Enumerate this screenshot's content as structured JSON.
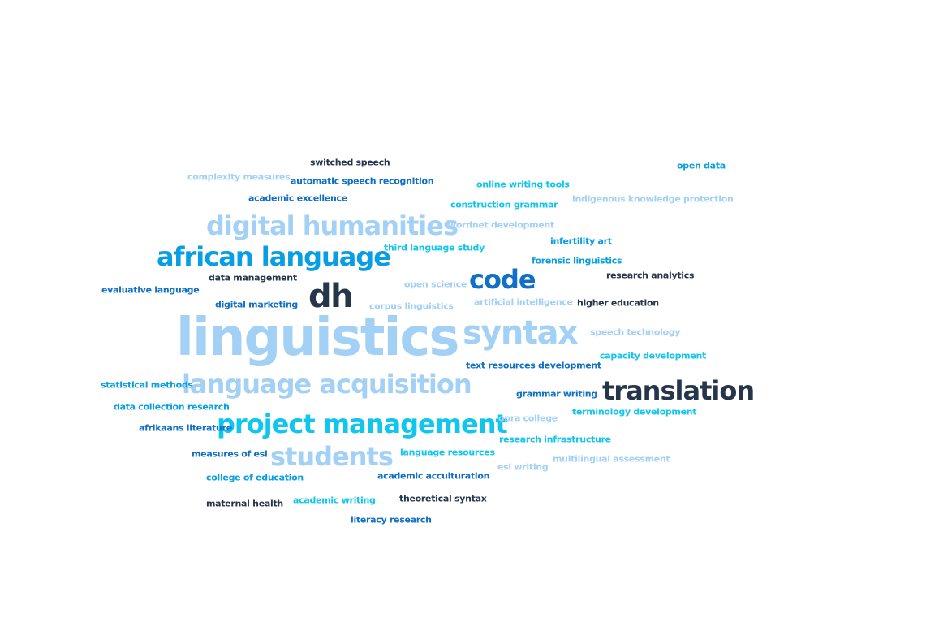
{
  "colors": {
    "light_blue": "#a3d1f5",
    "blue": "#089ee3",
    "navy": "#26364a",
    "cyan": "#11c6ec",
    "mid_blue": "#106fc6"
  },
  "words": [
    {
      "text": "linguistics",
      "color": "#a3d1f5"
    },
    {
      "text": "dh",
      "color": "#26364a"
    },
    {
      "text": "syntax",
      "color": "#a3d1f5"
    },
    {
      "text": "code",
      "color": "#106fc6"
    },
    {
      "text": "translation",
      "color": "#26364a"
    },
    {
      "text": "digital humanities",
      "color": "#a3d1f5"
    },
    {
      "text": "african language",
      "color": "#089ee3"
    },
    {
      "text": "language acquisition",
      "color": "#a3d1f5"
    },
    {
      "text": "project management",
      "color": "#11c6ec"
    },
    {
      "text": "students",
      "color": "#a3d1f5"
    },
    {
      "text": "switched speech",
      "color": "#26364a"
    },
    {
      "text": "complexity measures",
      "color": "#a3d1f5"
    },
    {
      "text": "automatic speech recognition",
      "color": "#106fc6"
    },
    {
      "text": "academic excellence",
      "color": "#106fc6"
    },
    {
      "text": "online writing tools",
      "color": "#11c6ec"
    },
    {
      "text": "open data",
      "color": "#089ee3"
    },
    {
      "text": "construction grammar",
      "color": "#11c6ec"
    },
    {
      "text": "indigenous knowledge protection",
      "color": "#a3d1f5"
    },
    {
      "text": "wordnet development",
      "color": "#a3d1f5"
    },
    {
      "text": "infertility art",
      "color": "#089ee3"
    },
    {
      "text": "third language study",
      "color": "#11c6ec"
    },
    {
      "text": "forensic linguistics",
      "color": "#089ee3"
    },
    {
      "text": "data management",
      "color": "#26364a"
    },
    {
      "text": "research analytics",
      "color": "#26364a"
    },
    {
      "text": "evaluative language",
      "color": "#106fc6"
    },
    {
      "text": "open science",
      "color": "#a3d1f5"
    },
    {
      "text": "digital marketing",
      "color": "#106fc6"
    },
    {
      "text": "corpus linguistics",
      "color": "#a3d1f5"
    },
    {
      "text": "artificial intelligence",
      "color": "#a3d1f5"
    },
    {
      "text": "higher education",
      "color": "#26364a"
    },
    {
      "text": "speech technology",
      "color": "#a3d1f5"
    },
    {
      "text": "capacity development",
      "color": "#11c6ec"
    },
    {
      "text": "text resources development",
      "color": "#106fc6"
    },
    {
      "text": "statistical methods",
      "color": "#089ee3"
    },
    {
      "text": "grammar writing",
      "color": "#106fc6"
    },
    {
      "text": "data collection research",
      "color": "#089ee3"
    },
    {
      "text": "terminology development",
      "color": "#11c6ec"
    },
    {
      "text": "afrikaans literature",
      "color": "#106fc6"
    },
    {
      "text": "opra college",
      "color": "#a3d1f5"
    },
    {
      "text": "research infrastructure",
      "color": "#11c6ec"
    },
    {
      "text": "measures of esl",
      "color": "#106fc6"
    },
    {
      "text": "language resources",
      "color": "#11c6ec"
    },
    {
      "text": "multilingual assessment",
      "color": "#a3d1f5"
    },
    {
      "text": "esl writing",
      "color": "#a3d1f5"
    },
    {
      "text": "college of education",
      "color": "#089ee3"
    },
    {
      "text": "academic acculturation",
      "color": "#106fc6"
    },
    {
      "text": "theoretical syntax",
      "color": "#26364a"
    },
    {
      "text": "maternal health",
      "color": "#26364a"
    },
    {
      "text": "academic writing",
      "color": "#11c6ec"
    },
    {
      "text": "literacy research",
      "color": "#106fc6"
    }
  ]
}
